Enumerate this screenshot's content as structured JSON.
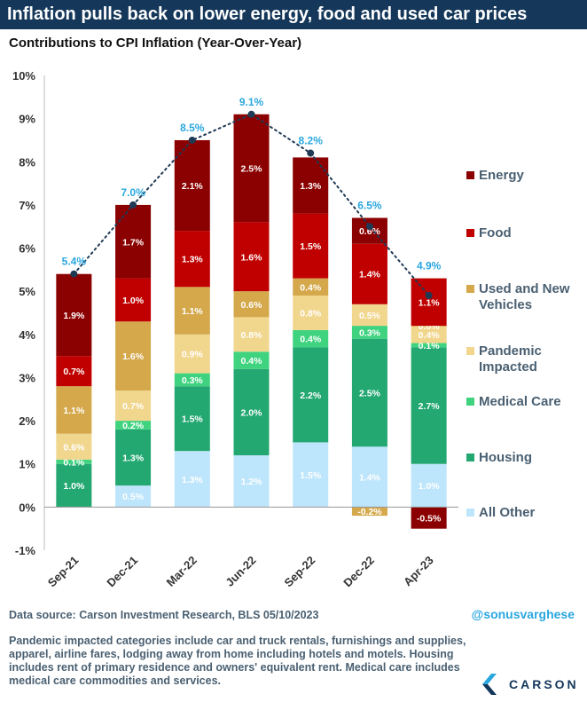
{
  "header": {
    "title": "Inflation pulls back on lower energy, food and used car prices",
    "subtitle": "Contributions to CPI Inflation (Year-Over-Year)"
  },
  "colors": {
    "banner": "#14375a",
    "Energy": "#8b0000",
    "Food": "#c00000",
    "Used and New Vehicles": "#d4a84b",
    "Pandemic Impacted": "#f1d68e",
    "Medical Care": "#3fd37f",
    "Housing": "#24a872",
    "All Other": "#bde5fb",
    "total_label": "#2aa7df",
    "line": "#1f3a55"
  },
  "chart_data": {
    "type": "bar",
    "stacked": true,
    "categories": [
      "Sep-21",
      "Dec-21",
      "Mar-22",
      "Jun-22",
      "Sep-22",
      "Dec-22",
      "Apr-23"
    ],
    "ylim": [
      -1,
      10
    ],
    "y_ticks": [
      "-1%",
      "0%",
      "1%",
      "2%",
      "3%",
      "4%",
      "5%",
      "6%",
      "7%",
      "8%",
      "9%",
      "10%"
    ],
    "grid": false,
    "legend_position": "right",
    "series": [
      {
        "name": "All Other",
        "values": [
          0.0,
          0.5,
          1.3,
          1.2,
          1.5,
          1.4,
          1.0
        ],
        "labels": [
          "0.0%",
          "0.5%",
          "1.3%",
          "1.2%",
          "1.5%",
          "1.4%",
          "1.0%"
        ]
      },
      {
        "name": "Housing",
        "values": [
          1.0,
          1.3,
          1.5,
          2.0,
          2.2,
          2.5,
          2.7
        ],
        "labels": [
          "1.0%",
          "1.3%",
          "1.5%",
          "2.0%",
          "2.2%",
          "2.5%",
          "2.7%"
        ]
      },
      {
        "name": "Medical Care",
        "values": [
          0.1,
          0.2,
          0.3,
          0.4,
          0.4,
          0.3,
          0.1
        ],
        "labels": [
          "0.1%",
          "0.2%",
          "0.3%",
          "0.4%",
          "0.4%",
          "0.3%",
          "0.1%"
        ]
      },
      {
        "name": "Pandemic Impacted",
        "values": [
          0.6,
          0.7,
          0.9,
          0.8,
          0.8,
          0.5,
          0.4
        ],
        "labels": [
          "0.6%",
          "0.7%",
          "0.9%",
          "0.8%",
          "0.8%",
          "0.5%",
          "0.4%"
        ]
      },
      {
        "name": "Used and New Vehicles",
        "values": [
          1.1,
          1.6,
          1.1,
          0.6,
          0.4,
          -0.2,
          0.0
        ],
        "labels": [
          "1.1%",
          "1.6%",
          "1.1%",
          "0.6%",
          "0.4%",
          "-0.2%",
          "0.0%"
        ]
      },
      {
        "name": "Food",
        "values": [
          0.7,
          1.0,
          1.3,
          1.6,
          1.5,
          1.4,
          1.1
        ],
        "labels": [
          "0.7%",
          "1.0%",
          "1.3%",
          "1.6%",
          "1.5%",
          "1.4%",
          "1.1%"
        ]
      },
      {
        "name": "Energy",
        "values": [
          1.9,
          1.7,
          2.1,
          2.5,
          1.3,
          0.6,
          -0.5
        ],
        "labels": [
          "1.9%",
          "1.7%",
          "2.1%",
          "2.5%",
          "1.3%",
          "0.6%",
          "-0.5%"
        ]
      }
    ],
    "totals": {
      "values": [
        5.4,
        7.0,
        8.5,
        9.1,
        8.2,
        6.5,
        4.9
      ],
      "labels": [
        "5.4%",
        "7.0%",
        "8.5%",
        "9.1%",
        "8.2%",
        "6.5%",
        "4.9%"
      ]
    },
    "legend": [
      {
        "name": "Energy",
        "label": [
          "Energy"
        ]
      },
      {
        "name": "Food",
        "label": [
          "Food"
        ]
      },
      {
        "name": "Used and New Vehicles",
        "label": [
          "Used and New",
          "Vehicles"
        ]
      },
      {
        "name": "Pandemic Impacted",
        "label": [
          "Pandemic",
          "Impacted"
        ]
      },
      {
        "name": "Medical Care",
        "label": [
          "Medical Care"
        ]
      },
      {
        "name": "Housing",
        "label": [
          "Housing"
        ]
      },
      {
        "name": "All Other",
        "label": [
          "All Other"
        ]
      }
    ]
  },
  "footer": {
    "source": "Data source: Carson Investment Research, BLS    05/10/2023",
    "handle": "@sonusvarghese",
    "note": "Pandemic impacted categories include car and truck rentals, furnishings and supplies, apparel, airline fares, lodging away from home including hotels and motels. Housing includes rent of primary residence and owners' equivalent rent. Medical care includes medical care commodities and services.",
    "logo_text": "CARSON"
  }
}
